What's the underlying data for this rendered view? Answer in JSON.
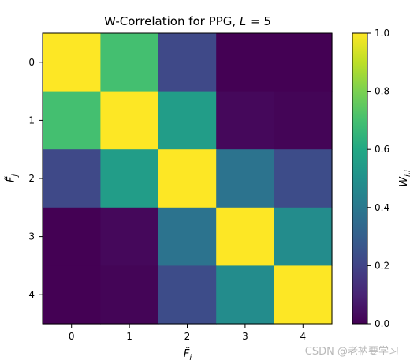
{
  "chart_data": {
    "type": "heatmap",
    "title": "W-Correlation for PPG, L = 5",
    "xlabel": "F̃i",
    "ylabel": "F̃j",
    "colorbar_label": "Wi,j",
    "x_categories": [
      "0",
      "1",
      "2",
      "3",
      "4"
    ],
    "y_categories": [
      "0",
      "1",
      "2",
      "3",
      "4"
    ],
    "values": [
      [
        1.0,
        0.7,
        0.22,
        0.0,
        0.0
      ],
      [
        0.7,
        1.0,
        0.55,
        0.02,
        0.01
      ],
      [
        0.22,
        0.55,
        1.0,
        0.38,
        0.23
      ],
      [
        0.0,
        0.02,
        0.38,
        1.0,
        0.48
      ],
      [
        0.0,
        0.01,
        0.23,
        0.48,
        1.0
      ]
    ],
    "colorbar_range": [
      0.0,
      1.0
    ],
    "colorbar_ticks": [
      "0.0",
      "0.2",
      "0.4",
      "0.6",
      "0.8",
      "1.0"
    ],
    "colormap": "viridis"
  },
  "watermark": "CSDN @老衲要学习"
}
